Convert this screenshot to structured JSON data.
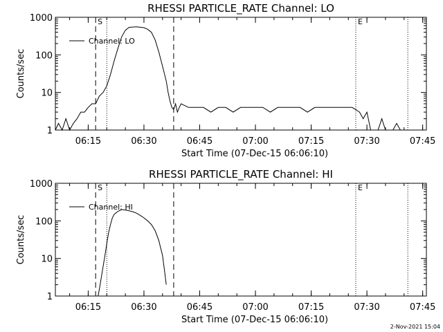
{
  "footer": {
    "timestamp": "2-Nov-2021 15:04"
  },
  "chart_data": [
    {
      "type": "line",
      "title": "RHESSI PARTICLE_RATE Channel: LO",
      "xlabel": "Start Time (07-Dec-15 06:06:10)",
      "ylabel": "Counts/sec",
      "yscale": "log",
      "ylim": [
        1,
        1000
      ],
      "xlim": [
        "06:06:10",
        "07:46:00"
      ],
      "x_ticks": [
        "06:15",
        "06:30",
        "06:45",
        "07:00",
        "07:15",
        "07:30",
        "07:45"
      ],
      "y_ticks": [
        "1",
        "10",
        "100",
        "1000"
      ],
      "legend": "upper-left",
      "series": [
        {
          "name": "Channel: LO",
          "x": [
            "06:06:10",
            "06:07:00",
            "06:08:00",
            "06:09:00",
            "06:10:00",
            "06:11:00",
            "06:12:00",
            "06:13:00",
            "06:14:00",
            "06:15:00",
            "06:16:00",
            "06:17:00",
            "06:18:00",
            "06:19:00",
            "06:20:00",
            "06:21:00",
            "06:22:00",
            "06:23:00",
            "06:24:00",
            "06:25:00",
            "06:26:00",
            "06:28:00",
            "06:30:00",
            "06:31:00",
            "06:32:00",
            "06:33:00",
            "06:34:00",
            "06:35:00",
            "06:36:00",
            "06:36:30",
            "06:37:00",
            "06:37:30",
            "06:38:00",
            "06:38:30",
            "06:39:00",
            "06:39:30",
            "06:40:00",
            "06:42:00",
            "06:44:00",
            "06:46:00",
            "06:48:00",
            "06:50:00",
            "06:52:00",
            "06:54:00",
            "06:56:00",
            "06:58:00",
            "07:00:00",
            "07:02:00",
            "07:04:00",
            "07:06:00",
            "07:08:00",
            "07:10:00",
            "07:12:00",
            "07:14:00",
            "07:16:00",
            "07:18:00",
            "07:20:00",
            "07:22:00",
            "07:24:00",
            "07:25:00",
            "07:26:00",
            "07:27:00",
            "07:28:00",
            "07:29:00",
            "07:30:00",
            "07:31:00",
            "07:32:00",
            "07:33:00",
            "07:34:00",
            "07:35:00",
            "07:36:00",
            "07:37:00",
            "07:38:00",
            "07:39:00",
            "07:40:00"
          ],
          "y": [
            1,
            1.5,
            1,
            2,
            1,
            1.5,
            2,
            3,
            3,
            4,
            5,
            5,
            8,
            10,
            15,
            30,
            70,
            150,
            300,
            450,
            540,
            560,
            530,
            480,
            400,
            250,
            120,
            50,
            20,
            10,
            6,
            4,
            3.5,
            5,
            3,
            4,
            5,
            4,
            4,
            4,
            3,
            4,
            4,
            3,
            4,
            4,
            4,
            4,
            3,
            4,
            4,
            4,
            4,
            3,
            4,
            4,
            4,
            4,
            4,
            4,
            4,
            3.5,
            3,
            2,
            3,
            1,
            1,
            1,
            2,
            1,
            1,
            1,
            1.5,
            1,
            1
          ]
        }
      ],
      "vlines": [
        {
          "x": "06:17:00",
          "style": "dashed",
          "label": "S"
        },
        {
          "x": "06:20:00",
          "style": "dotted",
          "label": ""
        },
        {
          "x": "06:38:00",
          "style": "dashed",
          "label": ""
        },
        {
          "x": "07:27:00",
          "style": "dotted",
          "label": "E"
        },
        {
          "x": "07:41:00",
          "style": "dotted",
          "label": ""
        }
      ]
    },
    {
      "type": "line",
      "title": "RHESSI PARTICLE_RATE Channel: HI",
      "xlabel": "Start Time (07-Dec-15 06:06:10)",
      "ylabel": "Counts/sec",
      "yscale": "log",
      "ylim": [
        1,
        1000
      ],
      "xlim": [
        "06:06:10",
        "07:46:00"
      ],
      "x_ticks": [
        "06:15",
        "06:30",
        "06:45",
        "07:00",
        "07:15",
        "07:30",
        "07:45"
      ],
      "y_ticks": [
        "1",
        "10",
        "100",
        "1000"
      ],
      "legend": "upper-left",
      "series": [
        {
          "name": "Channel: HI",
          "x": [
            "06:17:40",
            "06:18:00",
            "06:18:30",
            "06:19:00",
            "06:19:30",
            "06:20:00",
            "06:20:30",
            "06:21:00",
            "06:21:30",
            "06:22:00",
            "06:23:00",
            "06:24:00",
            "06:25:00",
            "06:26:00",
            "06:27:00",
            "06:28:00",
            "06:29:00",
            "06:30:00",
            "06:31:00",
            "06:32:00",
            "06:33:00",
            "06:34:00",
            "06:35:00",
            "06:35:30",
            "06:36:00"
          ],
          "y": [
            1,
            1.5,
            3,
            6,
            12,
            25,
            50,
            80,
            120,
            150,
            180,
            200,
            195,
            185,
            175,
            160,
            140,
            120,
            100,
            80,
            55,
            30,
            12,
            5,
            2
          ]
        }
      ],
      "vlines": [
        {
          "x": "06:17:00",
          "style": "dashed",
          "label": "S"
        },
        {
          "x": "06:20:00",
          "style": "dotted",
          "label": ""
        },
        {
          "x": "06:38:00",
          "style": "dashed",
          "label": ""
        },
        {
          "x": "07:27:00",
          "style": "dotted",
          "label": "E"
        },
        {
          "x": "07:41:00",
          "style": "dotted",
          "label": ""
        }
      ]
    }
  ]
}
